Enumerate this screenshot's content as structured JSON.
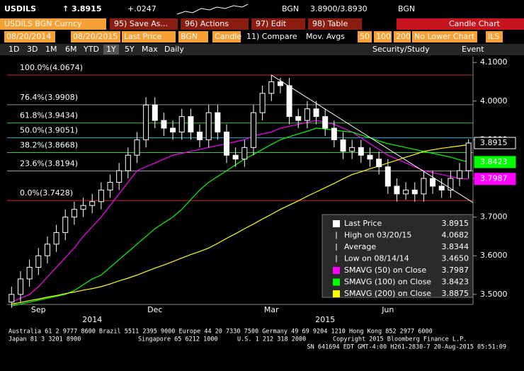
{
  "header": {
    "ticker": "USDILS",
    "last": "↑ 3.8915",
    "change": "+.0247",
    "source1": "BGN",
    "quote": "3.8900/3.8930",
    "source2": "BGN"
  },
  "menu": {
    "security": "USDILS BGN Curncy",
    "buttons": [
      "95) Save As...",
      "96) Actions",
      "97) Edit",
      "98) Table"
    ],
    "view": "Candle Chart"
  },
  "settings": {
    "start": "08/20/2014",
    "end": "08/20/2015",
    "field": "Last Price",
    "source": "BGN",
    "style": "Candle",
    "compare": "11) Compare",
    "mov_avgs": "Mov. Avgs",
    "ma": [
      "50",
      "100",
      "200"
    ],
    "lower": "No Lower Chart",
    "currency": "ILS"
  },
  "toolbar": {
    "ranges": [
      "1D",
      "3D",
      "1M",
      "6M",
      "YTD",
      "1Y",
      "5Y",
      "Max"
    ],
    "period": "Daily",
    "study": "Security/Study",
    "event": "Event"
  },
  "chart_data": {
    "type": "candlestick",
    "categories": [
      null,
      null,
      null,
      "Sep",
      null,
      null,
      null,
      null,
      null,
      null,
      null,
      null,
      null,
      null,
      null,
      null,
      "Dec",
      null,
      null,
      null,
      null,
      null,
      null,
      null,
      null,
      null,
      null,
      null,
      null,
      "Mar",
      null,
      null,
      null,
      null,
      null,
      null,
      null,
      null,
      null,
      null,
      null,
      null,
      "Jun",
      null,
      null,
      null,
      null,
      null,
      null,
      null,
      null,
      null
    ],
    "categories_2": [
      null,
      null,
      null,
      null,
      null,
      null,
      null,
      null,
      null,
      "2014",
      null,
      null,
      null,
      null,
      null,
      null,
      null,
      null,
      null,
      null,
      null,
      null,
      null,
      null,
      null,
      null,
      null,
      null,
      null,
      null,
      null,
      null,
      null,
      null,
      null,
      "2015",
      null,
      null,
      null,
      null,
      null,
      null,
      null,
      null,
      null,
      null,
      null,
      null,
      null,
      null,
      null,
      null
    ],
    "ylim": [
      3.474,
      4.115
    ],
    "yticks": [
      {
        "value": 3.5,
        "label": "3.5000"
      },
      {
        "value": 3.6,
        "label": "3.6000"
      },
      {
        "value": 3.7,
        "label": "3.7000"
      },
      {
        "value": 3.8,
        "label": "3.8000"
      },
      {
        "value": 3.9,
        "label": "3.9000"
      },
      {
        "value": 4.0,
        "label": "4.0000"
      },
      {
        "value": 4.1,
        "label": "4.1000"
      }
    ],
    "series": [
      {
        "name": "Last Price",
        "color": "#ffffff",
        "last_label": "3.8915",
        "open": [
          3.48,
          3.5,
          3.54,
          3.57,
          3.6,
          3.63,
          3.66,
          3.7,
          3.72,
          3.73,
          3.74,
          3.77,
          3.79,
          3.82,
          3.86,
          3.9,
          3.99,
          3.95,
          3.93,
          3.92,
          3.96,
          3.92,
          3.9,
          3.97,
          3.92,
          3.86,
          3.85,
          3.88,
          3.97,
          4.02,
          4.05,
          4.04,
          3.96,
          3.95,
          3.98,
          3.96,
          3.93,
          3.9,
          3.87,
          3.88,
          3.86,
          3.85,
          3.83,
          3.78,
          3.76,
          3.77,
          3.76,
          3.8,
          3.78,
          3.77,
          3.8,
          3.82
        ],
        "high": [
          3.52,
          3.56,
          3.59,
          3.62,
          3.65,
          3.68,
          3.72,
          3.74,
          3.75,
          3.76,
          3.79,
          3.81,
          3.84,
          3.88,
          3.92,
          4.01,
          4.01,
          3.97,
          3.95,
          3.98,
          3.98,
          3.94,
          3.99,
          3.99,
          3.94,
          3.88,
          3.9,
          3.99,
          4.04,
          4.0682,
          4.06,
          4.06,
          3.98,
          4.0,
          4.0,
          3.98,
          3.95,
          3.92,
          3.9,
          3.9,
          3.88,
          3.87,
          3.85,
          3.8,
          3.79,
          3.79,
          3.82,
          3.82,
          3.8,
          3.82,
          3.84,
          3.9015
        ],
        "low": [
          3.465,
          3.48,
          3.52,
          3.55,
          3.58,
          3.61,
          3.64,
          3.68,
          3.7,
          3.71,
          3.72,
          3.75,
          3.77,
          3.8,
          3.84,
          3.88,
          3.93,
          3.91,
          3.9,
          3.9,
          3.9,
          3.88,
          3.88,
          3.9,
          3.84,
          3.83,
          3.83,
          3.86,
          3.95,
          4.0,
          4.02,
          3.94,
          3.93,
          3.93,
          3.94,
          3.91,
          3.88,
          3.85,
          3.85,
          3.84,
          3.83,
          3.81,
          3.76,
          3.74,
          3.745,
          3.74,
          3.74,
          3.76,
          3.75,
          3.75,
          3.78,
          3.8
        ],
        "close": [
          3.5,
          3.54,
          3.57,
          3.6,
          3.63,
          3.66,
          3.7,
          3.72,
          3.73,
          3.74,
          3.77,
          3.79,
          3.82,
          3.86,
          3.9,
          3.99,
          3.95,
          3.93,
          3.92,
          3.96,
          3.92,
          3.9,
          3.97,
          3.92,
          3.86,
          3.85,
          3.88,
          3.97,
          4.02,
          4.05,
          4.04,
          3.96,
          3.95,
          3.98,
          3.96,
          3.93,
          3.9,
          3.87,
          3.88,
          3.86,
          3.85,
          3.83,
          3.78,
          3.76,
          3.77,
          3.76,
          3.8,
          3.78,
          3.77,
          3.8,
          3.82,
          3.8915
        ]
      },
      {
        "name": "SMAVG (50) on Close",
        "color": "#ff00ff",
        "last_label": "3.7987",
        "values": [
          3.48,
          3.49,
          3.5,
          3.52,
          3.545,
          3.57,
          3.595,
          3.62,
          3.65,
          3.675,
          3.7,
          3.73,
          3.76,
          3.79,
          3.82,
          3.83,
          3.84,
          3.85,
          3.86,
          3.865,
          3.87,
          3.875,
          3.88,
          3.885,
          3.89,
          3.895,
          3.9,
          3.91,
          3.915,
          3.92,
          3.93,
          3.935,
          3.94,
          3.945,
          3.95,
          3.945,
          3.94,
          3.93,
          3.92,
          3.905,
          3.89,
          3.875,
          3.86,
          3.85,
          3.84,
          3.83,
          3.82,
          3.815,
          3.81,
          3.805,
          3.8,
          3.7987
        ]
      },
      {
        "name": "SMAVG (100) on Close",
        "color": "#00ff00",
        "last_label": "3.8423",
        "values": [
          3.47,
          3.475,
          3.48,
          3.485,
          3.49,
          3.495,
          3.5,
          3.51,
          3.525,
          3.54,
          3.55,
          3.57,
          3.59,
          3.61,
          3.63,
          3.65,
          3.67,
          3.685,
          3.7,
          3.72,
          3.745,
          3.77,
          3.79,
          3.805,
          3.82,
          3.835,
          3.85,
          3.862,
          3.875,
          3.888,
          3.9,
          3.908,
          3.915,
          3.922,
          3.93,
          3.928,
          3.925,
          3.922,
          3.92,
          3.912,
          3.905,
          3.897,
          3.89,
          3.885,
          3.88,
          3.875,
          3.87,
          3.865,
          3.86,
          3.855,
          3.848,
          3.8423
        ]
      },
      {
        "name": "SMAVG (200) on Close",
        "color": "#ffff00",
        "last_label": "3.8875",
        "values": [
          3.475,
          3.479,
          3.484,
          3.488,
          3.493,
          3.497,
          3.502,
          3.506,
          3.511,
          3.515,
          3.52,
          3.527,
          3.535,
          3.542,
          3.55,
          3.559,
          3.568,
          3.576,
          3.585,
          3.594,
          3.603,
          3.611,
          3.62,
          3.632,
          3.645,
          3.657,
          3.67,
          3.682,
          3.695,
          3.707,
          3.72,
          3.731,
          3.742,
          3.754,
          3.765,
          3.776,
          3.787,
          3.799,
          3.81,
          3.817,
          3.825,
          3.832,
          3.84,
          3.847,
          3.855,
          3.862,
          3.87,
          3.874,
          3.878,
          3.881,
          3.884,
          3.8875
        ]
      }
    ],
    "stats": [
      {
        "label": "High on 03/20/15",
        "value": "4.0682"
      },
      {
        "label": "Average",
        "value": "3.8344"
      },
      {
        "label": "Low on 08/14/14",
        "value": "3.4650"
      }
    ],
    "fib_levels": [
      {
        "label": "100.0%(4.0674)",
        "value": 4.0674,
        "color": "#ff3030"
      },
      {
        "label": "76.4%(3.9908)",
        "value": 3.9908,
        "color": "#b0b0b0"
      },
      {
        "label": "61.8%(3.9434)",
        "value": 3.9434,
        "color": "#40ff40"
      },
      {
        "label": "50.0%(3.9051)",
        "value": 3.9051,
        "color": "#40d8ff"
      },
      {
        "label": "38.2%(3.8668)",
        "value": 3.8668,
        "color": "#40ff40"
      },
      {
        "label": "23.6%(3.8194)",
        "value": 3.8194,
        "color": "#d0d0d0"
      },
      {
        "label": "0.0%(3.7428)",
        "value": 3.7428,
        "color": "#ff3030"
      }
    ],
    "trendline": {
      "x": [
        29,
        52
      ],
      "y": [
        4.0674,
        3.73
      ]
    }
  },
  "footer": [
    "Australia 61 2 9777 8600 Brazil 5511 2395 9000 Europe 44 20 7330 7500 Germany 49 69 9204 1210 Hong Kong 852 2977 6000",
    "Japan 81 3 3201 8900",
    "Singapore 65 6212 1000",
    "U.S. 1 212 318 2000",
    "Copyright 2015 Bloomberg Finance L.P.",
    "SN 641694 EDT  GMT-4:00 H261-2830-7 20-Aug-2015 05:51:09"
  ]
}
